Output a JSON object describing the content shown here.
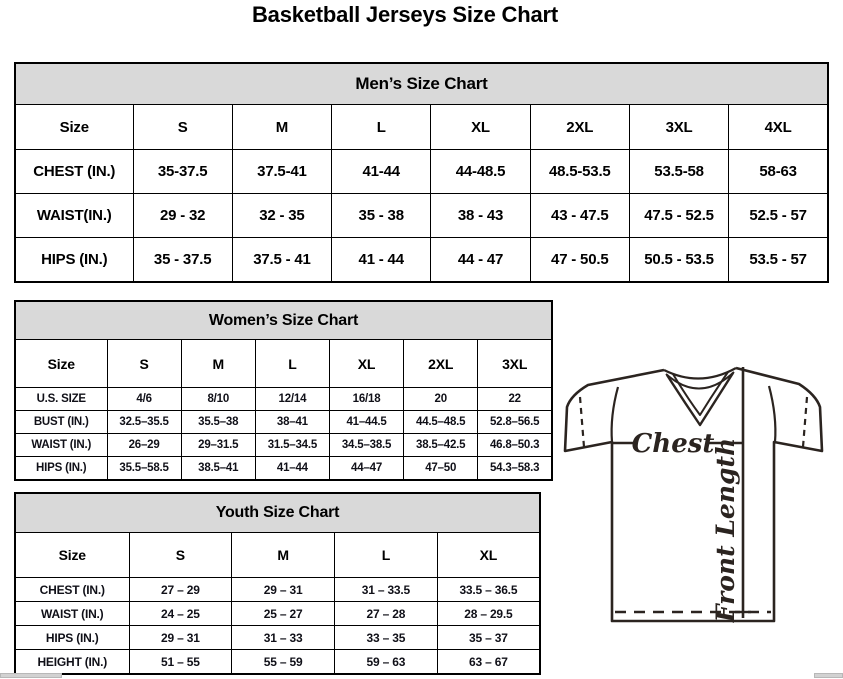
{
  "page": {
    "title": "Basketball Jerseys Size Chart"
  },
  "colors": {
    "band_bg": "#d9d9d9",
    "border": "#000000",
    "ink": "#000000",
    "diagram_ink": "#2b2420",
    "scrollbar_gray": "#d2d2d2"
  },
  "tables": {
    "mens": {
      "title": "Men’s Size Chart",
      "col_header": [
        "Size",
        "S",
        "M",
        "L",
        "XL",
        "2XL",
        "3XL",
        "4XL"
      ],
      "rows": [
        {
          "label": "CHEST (IN.)",
          "values": [
            "35-37.5",
            "37.5-41",
            "41-44",
            "44-48.5",
            "48.5-53.5",
            "53.5-58",
            "58-63"
          ]
        },
        {
          "label": "WAIST(IN.)",
          "values": [
            "29 - 32",
            "32 - 35",
            "35 - 38",
            "38 - 43",
            "43 - 47.5",
            "47.5 - 52.5",
            "52.5 - 57"
          ]
        },
        {
          "label": "HIPS (IN.)",
          "values": [
            "35 - 37.5",
            "37.5 - 41",
            "41 - 44",
            "44 - 47",
            "47 - 50.5",
            "50.5 - 53.5",
            "53.5 - 57"
          ]
        }
      ]
    },
    "womens": {
      "title": "Women’s Size Chart",
      "col_header": [
        "Size",
        "S",
        "M",
        "L",
        "XL",
        "2XL",
        "3XL"
      ],
      "rows": [
        {
          "label": "U.S. SIZE",
          "values": [
            "4/6",
            "8/10",
            "12/14",
            "16/18",
            "20",
            "22"
          ]
        },
        {
          "label": "BUST (IN.)",
          "values": [
            "32.5–35.5",
            "35.5–38",
            "38–41",
            "41–44.5",
            "44.5–48.5",
            "52.8–56.5"
          ]
        },
        {
          "label": "WAIST (IN.)",
          "values": [
            "26–29",
            "29–31.5",
            "31.5–34.5",
            "34.5–38.5",
            "38.5–42.5",
            "46.8–50.3"
          ]
        },
        {
          "label": "HIPS (IN.)",
          "values": [
            "35.5–58.5",
            "38.5–41",
            "41–44",
            "44–47",
            "47–50",
            "54.3–58.3"
          ]
        }
      ]
    },
    "youth": {
      "title": "Youth Size Chart",
      "col_header": [
        "Size",
        "S",
        "M",
        "L",
        "XL"
      ],
      "rows": [
        {
          "label": "CHEST (IN.)",
          "values": [
            "27 – 29",
            "29 – 31",
            "31 – 33.5",
            "33.5 – 36.5"
          ]
        },
        {
          "label": "WAIST (IN.)",
          "values": [
            "24 – 25",
            "25 – 27",
            "27 – 28",
            "28 – 29.5"
          ]
        },
        {
          "label": "HIPS (IN.)",
          "values": [
            "29 – 31",
            "31 – 33",
            "33 – 35",
            "35 – 37"
          ]
        },
        {
          "label": "HEIGHT (IN.)",
          "values": [
            "51 – 55",
            "55 – 59",
            "59 – 63",
            "63 – 67"
          ]
        }
      ]
    }
  },
  "diagram": {
    "chest_label": "Chest",
    "front_length_label": "Front Length"
  }
}
